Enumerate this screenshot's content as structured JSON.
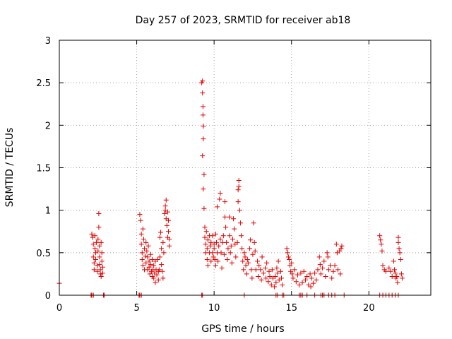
{
  "chart_data": {
    "type": "scatter",
    "title": "Day 257 of 2023, SRMTID for receiver ab18",
    "xlabel": "GPS time / hours",
    "ylabel": "SRMTID / TECUs",
    "xlim": [
      0,
      24
    ],
    "ylim": [
      0,
      3
    ],
    "x_ticks": [
      0,
      5,
      10,
      15,
      20
    ],
    "x_tick_labels": [
      "0",
      "5",
      "10",
      "15",
      "20"
    ],
    "y_ticks": [
      0,
      0.5,
      1,
      1.5,
      2,
      2.5,
      3
    ],
    "y_tick_labels": [
      "0",
      "0.5",
      "1",
      "1.5",
      "2",
      "2.5",
      "3"
    ],
    "grid": true,
    "marker": "+",
    "color": "#e00000",
    "series": [
      {
        "name": "SRMTID",
        "points": [
          [
            0.0,
            0.14
          ],
          [
            2.1,
            0.72
          ],
          [
            2.15,
            0.68
          ],
          [
            2.2,
            0.6
          ],
          [
            2.2,
            0.45
          ],
          [
            2.25,
            0.38
          ],
          [
            2.25,
            0.3
          ],
          [
            2.3,
            0.55
          ],
          [
            2.3,
            0.7
          ],
          [
            2.35,
            0.5
          ],
          [
            2.35,
            0.42
          ],
          [
            2.4,
            0.62
          ],
          [
            2.45,
            0.35
          ],
          [
            2.45,
            0.28
          ],
          [
            2.5,
            0.66
          ],
          [
            2.5,
            0.52
          ],
          [
            2.55,
            0.96
          ],
          [
            2.55,
            0.8
          ],
          [
            2.6,
            0.58
          ],
          [
            2.6,
            0.45
          ],
          [
            2.6,
            0.36
          ],
          [
            2.65,
            0.3
          ],
          [
            2.65,
            0.25
          ],
          [
            2.7,
            0.62
          ],
          [
            2.7,
            0.22
          ],
          [
            2.75,
            0.5
          ],
          [
            2.75,
            0.4
          ],
          [
            2.8,
            0.26
          ],
          [
            2.8,
            0.33
          ],
          [
            5.2,
            0.95
          ],
          [
            5.25,
            0.88
          ],
          [
            5.3,
            0.72
          ],
          [
            5.3,
            0.6
          ],
          [
            5.35,
            0.5
          ],
          [
            5.35,
            0.42
          ],
          [
            5.4,
            0.78
          ],
          [
            5.4,
            0.35
          ],
          [
            5.45,
            0.66
          ],
          [
            5.5,
            0.55
          ],
          [
            5.5,
            0.3
          ],
          [
            5.55,
            0.46
          ],
          [
            5.6,
            0.62
          ],
          [
            5.6,
            0.38
          ],
          [
            5.65,
            0.52
          ],
          [
            5.7,
            0.45
          ],
          [
            5.7,
            0.3
          ],
          [
            5.75,
            0.58
          ],
          [
            5.8,
            0.4
          ],
          [
            5.8,
            0.33
          ],
          [
            5.85,
            0.25
          ],
          [
            5.9,
            0.36
          ],
          [
            5.9,
            0.48
          ],
          [
            5.95,
            0.28
          ],
          [
            6.0,
            0.22
          ],
          [
            6.0,
            0.42
          ],
          [
            6.05,
            0.3
          ],
          [
            6.1,
            0.35
          ],
          [
            6.1,
            0.2
          ],
          [
            6.15,
            0.26
          ],
          [
            6.2,
            0.4
          ],
          [
            6.2,
            0.15
          ],
          [
            6.25,
            0.3
          ],
          [
            6.3,
            0.24
          ],
          [
            6.35,
            0.42
          ],
          [
            6.4,
            0.28
          ],
          [
            6.4,
            0.18
          ],
          [
            6.45,
            0.3
          ],
          [
            6.5,
            0.45
          ],
          [
            6.5,
            0.68
          ],
          [
            6.55,
            0.74
          ],
          [
            6.6,
            0.55
          ],
          [
            6.6,
            0.36
          ],
          [
            6.65,
            0.28
          ],
          [
            6.7,
            0.2
          ],
          [
            6.7,
            0.62
          ],
          [
            6.75,
            0.5
          ],
          [
            6.8,
            0.96
          ],
          [
            6.85,
            1.05
          ],
          [
            6.85,
            1.0
          ],
          [
            6.9,
            0.9
          ],
          [
            6.9,
            1.12
          ],
          [
            6.95,
            0.82
          ],
          [
            7.0,
            0.68
          ],
          [
            7.0,
            0.98
          ],
          [
            7.05,
            0.75
          ],
          [
            7.05,
            0.88
          ],
          [
            7.1,
            0.58
          ],
          [
            7.1,
            0.66
          ],
          [
            9.2,
            2.5
          ],
          [
            9.25,
            2.52
          ],
          [
            9.25,
            2.38
          ],
          [
            9.28,
            2.22
          ],
          [
            9.28,
            2.12
          ],
          [
            9.3,
            1.99
          ],
          [
            9.3,
            1.84
          ],
          [
            9.25,
            1.64
          ],
          [
            9.35,
            1.42
          ],
          [
            9.3,
            1.25
          ],
          [
            9.35,
            1.02
          ],
          [
            9.4,
            0.8
          ],
          [
            9.4,
            0.68
          ],
          [
            9.45,
            0.6
          ],
          [
            9.45,
            0.5
          ],
          [
            9.5,
            0.75
          ],
          [
            9.55,
            0.55
          ],
          [
            9.55,
            0.42
          ],
          [
            9.6,
            0.65
          ],
          [
            9.6,
            0.35
          ],
          [
            9.7,
            0.7
          ],
          [
            9.7,
            0.5
          ],
          [
            9.75,
            0.58
          ],
          [
            9.8,
            0.4
          ],
          [
            9.8,
            0.62
          ],
          [
            9.9,
            0.7
          ],
          [
            9.9,
            0.5
          ],
          [
            9.95,
            0.45
          ],
          [
            10.0,
            0.55
          ],
          [
            10.0,
            0.6
          ],
          [
            10.05,
            0.42
          ],
          [
            10.1,
            0.72
          ],
          [
            10.1,
            0.35
          ],
          [
            10.15,
            0.62
          ],
          [
            10.2,
            1.04
          ],
          [
            10.2,
            0.5
          ],
          [
            10.25,
            0.4
          ],
          [
            10.3,
            0.58
          ],
          [
            10.35,
            1.13
          ],
          [
            10.4,
            1.2
          ],
          [
            10.4,
            0.66
          ],
          [
            10.45,
            0.5
          ],
          [
            10.5,
            0.32
          ],
          [
            10.55,
            0.62
          ],
          [
            10.6,
            0.7
          ],
          [
            10.65,
            0.48
          ],
          [
            10.7,
            1.1
          ],
          [
            10.7,
            0.92
          ],
          [
            10.75,
            0.8
          ],
          [
            10.8,
            0.62
          ],
          [
            10.85,
            0.42
          ],
          [
            10.9,
            0.55
          ],
          [
            11.0,
            0.92
          ],
          [
            11.0,
            0.7
          ],
          [
            11.05,
            0.5
          ],
          [
            11.1,
            0.58
          ],
          [
            11.15,
            0.38
          ],
          [
            11.2,
            0.66
          ],
          [
            11.25,
            0.9
          ],
          [
            11.3,
            0.78
          ],
          [
            11.35,
            0.6
          ],
          [
            11.4,
            0.45
          ],
          [
            11.5,
            0.62
          ],
          [
            11.55,
            1.1
          ],
          [
            11.55,
            1.24
          ],
          [
            11.6,
            1.35
          ],
          [
            11.6,
            1.28
          ],
          [
            11.65,
            1.0
          ],
          [
            11.7,
            0.85
          ],
          [
            11.75,
            0.7
          ],
          [
            11.8,
            0.55
          ],
          [
            11.85,
            0.4
          ],
          [
            11.9,
            0.3
          ],
          [
            11.95,
            0.5
          ],
          [
            12.0,
            0.45
          ],
          [
            12.05,
            0.35
          ],
          [
            12.1,
            0.25
          ],
          [
            12.15,
            0.42
          ],
          [
            12.2,
            0.38
          ],
          [
            12.3,
            0.55
          ],
          [
            12.35,
            0.65
          ],
          [
            12.4,
            0.3
          ],
          [
            12.45,
            0.2
          ],
          [
            12.5,
            0.48
          ],
          [
            12.55,
            0.85
          ],
          [
            12.6,
            0.62
          ],
          [
            12.65,
            0.52
          ],
          [
            12.7,
            0.3
          ],
          [
            12.8,
            0.4
          ],
          [
            12.85,
            0.22
          ],
          [
            12.9,
            0.35
          ],
          [
            13.0,
            0.3
          ],
          [
            13.05,
            0.18
          ],
          [
            13.1,
            0.45
          ],
          [
            13.2,
            0.26
          ],
          [
            13.3,
            0.32
          ],
          [
            13.35,
            0.2
          ],
          [
            13.4,
            0.38
          ],
          [
            13.5,
            0.16
          ],
          [
            13.55,
            0.28
          ],
          [
            13.6,
            0.22
          ],
          [
            13.7,
            0.12
          ],
          [
            13.75,
            0.3
          ],
          [
            13.8,
            0.2
          ],
          [
            13.9,
            0.1
          ],
          [
            13.95,
            0.22
          ],
          [
            14.0,
            0.15
          ],
          [
            14.05,
            0.32
          ],
          [
            14.1,
            0.26
          ],
          [
            14.15,
            0.4
          ],
          [
            14.2,
            0.18
          ],
          [
            14.3,
            0.28
          ],
          [
            14.35,
            0.2
          ],
          [
            14.4,
            0.12
          ],
          [
            14.7,
            0.55
          ],
          [
            14.75,
            0.5
          ],
          [
            14.8,
            0.45
          ],
          [
            14.85,
            0.42
          ],
          [
            14.9,
            0.35
          ],
          [
            14.95,
            0.28
          ],
          [
            15.0,
            0.38
          ],
          [
            15.05,
            0.25
          ],
          [
            15.1,
            0.2
          ],
          [
            15.2,
            0.3
          ],
          [
            15.3,
            0.16
          ],
          [
            15.4,
            0.24
          ],
          [
            15.5,
            0.12
          ],
          [
            15.6,
            0.26
          ],
          [
            15.7,
            0.15
          ],
          [
            15.8,
            0.28
          ],
          [
            15.9,
            0.18
          ],
          [
            16.0,
            0.22
          ],
          [
            16.1,
            0.12
          ],
          [
            16.2,
            0.25
          ],
          [
            16.25,
            0.1
          ],
          [
            16.3,
            0.2
          ],
          [
            16.4,
            0.14
          ],
          [
            16.5,
            0.26
          ],
          [
            16.6,
            0.18
          ],
          [
            16.7,
            0.3
          ],
          [
            16.8,
            0.45
          ],
          [
            16.85,
            0.36
          ],
          [
            16.9,
            0.25
          ],
          [
            17.0,
            0.32
          ],
          [
            17.1,
            0.4
          ],
          [
            17.2,
            0.22
          ],
          [
            17.3,
            0.5
          ],
          [
            17.35,
            0.45
          ],
          [
            17.4,
            0.3
          ],
          [
            17.5,
            0.35
          ],
          [
            17.6,
            0.2
          ],
          [
            17.7,
            0.28
          ],
          [
            17.8,
            0.35
          ],
          [
            17.9,
            0.6
          ],
          [
            17.95,
            0.5
          ],
          [
            18.0,
            0.3
          ],
          [
            18.1,
            0.52
          ],
          [
            18.15,
            0.25
          ],
          [
            18.2,
            0.55
          ],
          [
            18.25,
            0.58
          ],
          [
            20.7,
            0.7
          ],
          [
            20.75,
            0.65
          ],
          [
            20.8,
            0.6
          ],
          [
            20.85,
            0.52
          ],
          [
            20.9,
            0.35
          ],
          [
            21.0,
            0.3
          ],
          [
            21.1,
            0.28
          ],
          [
            21.3,
            0.32
          ],
          [
            21.4,
            0.28
          ],
          [
            21.5,
            0.22
          ],
          [
            21.6,
            0.4
          ],
          [
            21.65,
            0.3
          ],
          [
            21.7,
            0.26
          ],
          [
            21.75,
            0.2
          ],
          [
            21.8,
            0.22
          ],
          [
            21.85,
            0.15
          ],
          [
            21.9,
            0.62
          ],
          [
            21.9,
            0.68
          ],
          [
            21.95,
            0.55
          ],
          [
            22.0,
            0.5
          ],
          [
            22.05,
            0.42
          ],
          [
            22.1,
            0.25
          ],
          [
            22.15,
            0.2
          ],
          [
            2.05,
            0.0
          ],
          [
            2.1,
            0.0
          ],
          [
            2.2,
            0.0
          ],
          [
            2.85,
            0.0
          ],
          [
            2.9,
            0.0
          ],
          [
            5.15,
            0.0
          ],
          [
            5.2,
            0.0
          ],
          [
            5.3,
            0.0
          ],
          [
            9.2,
            0.0
          ],
          [
            9.25,
            0.0
          ],
          [
            11.95,
            0.0
          ],
          [
            14.0,
            0.0
          ],
          [
            14.1,
            0.0
          ],
          [
            14.4,
            0.0
          ],
          [
            14.5,
            0.0
          ],
          [
            15.5,
            0.0
          ],
          [
            15.6,
            0.0
          ],
          [
            15.7,
            0.0
          ],
          [
            16.0,
            0.0
          ],
          [
            16.5,
            0.0
          ],
          [
            16.9,
            0.0
          ],
          [
            17.0,
            0.0
          ],
          [
            17.1,
            0.0
          ],
          [
            17.4,
            0.0
          ],
          [
            17.6,
            0.0
          ],
          [
            17.8,
            0.0
          ],
          [
            18.4,
            0.0
          ],
          [
            20.7,
            0.0
          ],
          [
            20.9,
            0.0
          ],
          [
            21.1,
            0.0
          ],
          [
            21.3,
            0.0
          ],
          [
            21.5,
            0.0
          ],
          [
            21.7,
            0.0
          ],
          [
            21.9,
            0.0
          ]
        ]
      }
    ]
  }
}
